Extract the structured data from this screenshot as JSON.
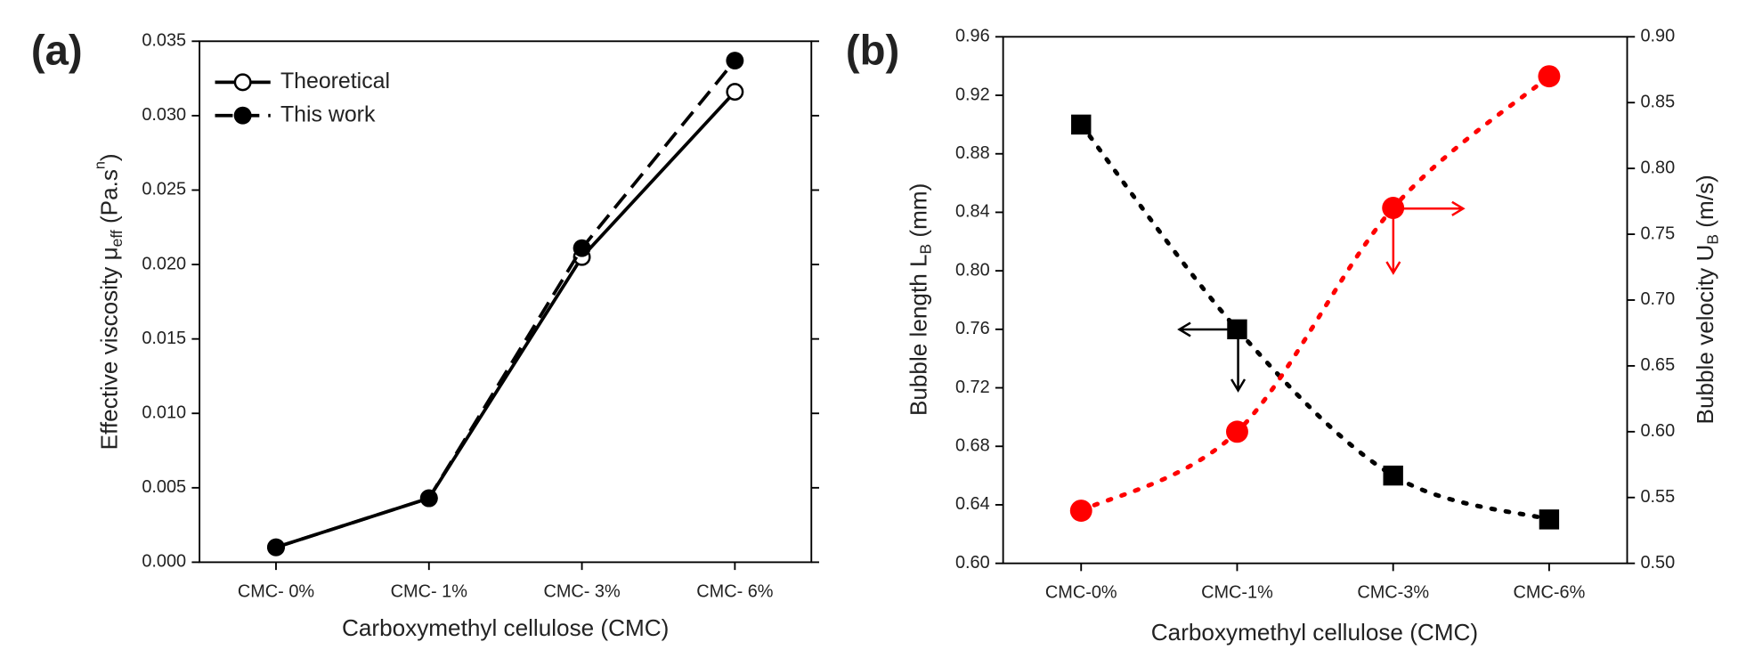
{
  "chart_data": [
    {
      "type": "line",
      "panel_label": "(a)",
      "categories": [
        "CMC- 0%",
        "CMC- 1%",
        "CMC- 3%",
        "CMC- 6%"
      ],
      "xlabel": "Carboxymethyl cellulose (CMC)",
      "ylabel": [
        "Effective viscosity μ",
        "eff",
        " (Pa.s",
        "n",
        ")"
      ],
      "ylim": [
        0,
        0.035
      ],
      "yticks": [
        {
          "value": 0,
          "label": "0.000"
        },
        0.005,
        {
          "value": 0.01,
          "label": "0.010"
        },
        0.015,
        {
          "value": 0.02,
          "label": "0.020"
        },
        0.025,
        {
          "value": 0.03,
          "label": "0.030"
        },
        0.035
      ],
      "legend": "upper left",
      "series": [
        {
          "name": "Theoretical",
          "color": "#000000",
          "marker": "open-circle",
          "linestyle": "solid",
          "values": [
            0.001,
            0.0043,
            0.0205,
            0.0316
          ]
        },
        {
          "name": "This work",
          "color": "#000000",
          "marker": "circle",
          "linestyle": "dashed",
          "values": [
            0.001,
            0.0043,
            0.0211,
            0.0337
          ]
        }
      ]
    },
    {
      "type": "line",
      "panel_label": "(b)",
      "categories": [
        "CMC-0%",
        "CMC-1%",
        "CMC-3%",
        "CMC-6%"
      ],
      "xlabel": "Carboxymethyl cellulose (CMC)",
      "ylabel": [
        "Bubble length L",
        "B",
        " (mm)"
      ],
      "y2label": [
        "Bubble velocity U",
        "B",
        " (m/s)"
      ],
      "ylim": [
        0.6,
        0.96
      ],
      "yticks": [
        {
          "value": 0.6,
          "label": "0.60"
        },
        0.64,
        0.68,
        0.72,
        0.76,
        {
          "value": 0.8,
          "label": "0.80"
        },
        0.84,
        0.88,
        0.92,
        0.96
      ],
      "y2lim": [
        0.5,
        0.9
      ],
      "y2ticks": [
        {
          "value": 0.5,
          "label": "0.50"
        },
        0.55,
        {
          "value": 0.6,
          "label": "0.60"
        },
        0.65,
        {
          "value": 0.7,
          "label": "0.70"
        },
        0.75,
        {
          "value": 0.8,
          "label": "0.80"
        },
        0.85,
        {
          "value": 0.9,
          "label": "0.90"
        }
      ],
      "series": [
        {
          "color": "#000000",
          "marker": "square",
          "linestyle": "dotted",
          "values": [
            0.9,
            0.76,
            0.66,
            0.63
          ]
        },
        {
          "color": "#ff0000",
          "marker": "circle",
          "linestyle": "dotted",
          "axis": "y2",
          "values": [
            0.54,
            0.6,
            0.77,
            0.87
          ]
        }
      ]
    }
  ]
}
